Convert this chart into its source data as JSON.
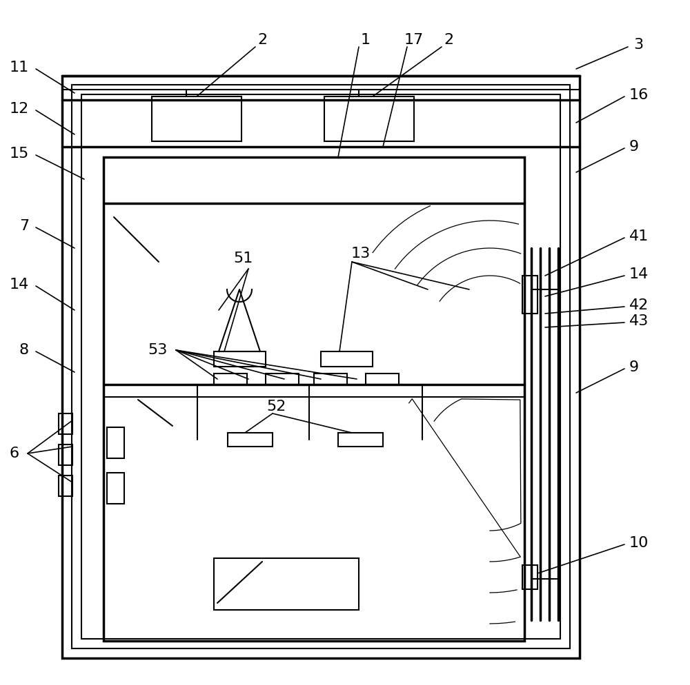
{
  "fig_width": 10.0,
  "fig_height": 9.94,
  "bg_color": "#ffffff",
  "line_color": "#000000"
}
